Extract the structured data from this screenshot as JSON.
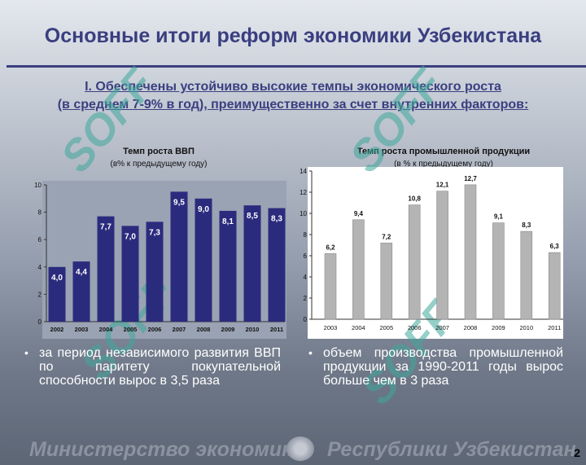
{
  "slide": {
    "title": "Основные итоги реформ экономики Узбекистана",
    "subtitle_line1": "I. Обеспечены устойчиво высокие темпы экономического роста",
    "subtitle_line2": "(в среднем 7-9% в год), преимущественно за счет внутренних факторов:",
    "bullet_left": "за период независимого развития ВВП по паритету покупательной способности вырос в 3,5 раза",
    "bullet_right": "объем производства промышленной продукции за 1990-2011 годы вырос больше чем в 3 раза",
    "bullet_symbol": "•",
    "footer_left": "Министерство экономики",
    "footer_right": "Республики Узбекистан",
    "page_number": "2",
    "watermark_text": "SOFF"
  },
  "chart_data": [
    {
      "type": "bar",
      "title": "Темп роста ВВП",
      "subtitle": "(в% к предыдущему году)",
      "categories": [
        "2002",
        "2003",
        "2004",
        "2005",
        "2006",
        "2007",
        "2008",
        "2009",
        "2010",
        "2011"
      ],
      "values": [
        4.0,
        4.4,
        7.7,
        7.0,
        7.3,
        9.5,
        9.0,
        8.1,
        8.5,
        8.3
      ],
      "value_labels": [
        "4,0",
        "4,4",
        "7,7",
        "7,0",
        "7,3",
        "9,5",
        "9,0",
        "8,1",
        "8,5",
        "8,3"
      ],
      "ylim": [
        0,
        10
      ],
      "yticks": [
        0,
        2,
        4,
        6,
        8,
        10
      ],
      "grid": false,
      "bar_color": "#2b2b7e",
      "label_color": "#ffffff"
    },
    {
      "type": "bar",
      "title": "Темп роста промышленной продукции",
      "subtitle": "(в % к предыдущему году)",
      "categories": [
        "2003",
        "2004",
        "2005",
        "2006",
        "2007",
        "2008",
        "2009",
        "2010",
        "2011"
      ],
      "values": [
        6.2,
        9.4,
        7.2,
        10.8,
        12.1,
        12.7,
        9.1,
        8.3,
        6.3
      ],
      "value_labels": [
        "6,2",
        "9,4",
        "7,2",
        "10,8",
        "12,1",
        "12,7",
        "9,1",
        "8,3",
        "6,3"
      ],
      "ylim": [
        0,
        14
      ],
      "yticks": [
        0,
        2,
        4,
        6,
        8,
        10,
        12,
        14
      ],
      "grid": false,
      "bar_color": "#b4b4b4",
      "label_color": "#111111"
    }
  ]
}
